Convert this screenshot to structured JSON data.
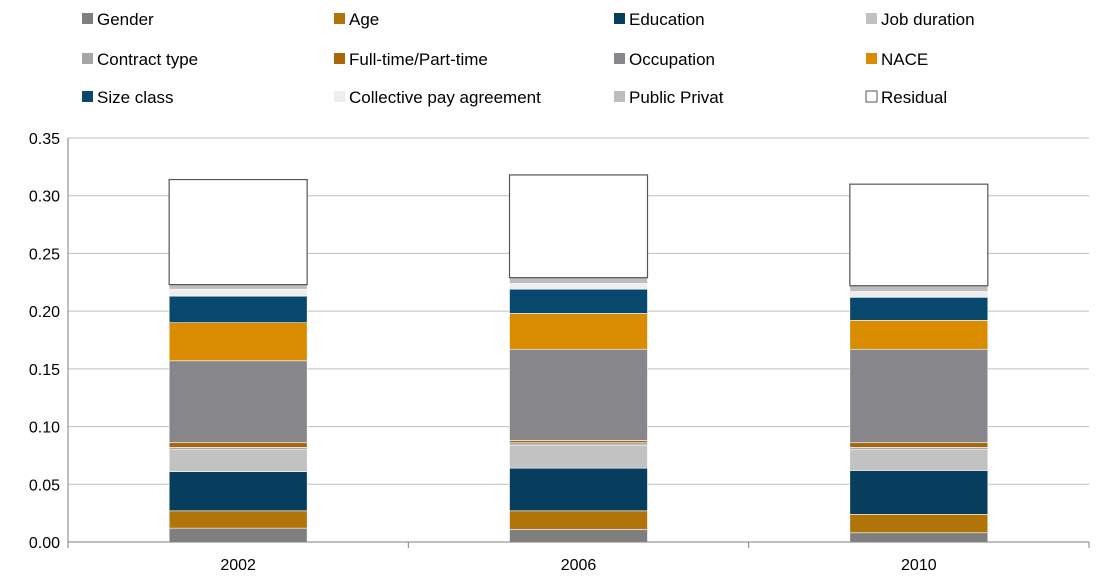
{
  "chart_data": {
    "type": "bar",
    "stacked": true,
    "categories": [
      "2002",
      "2006",
      "2010"
    ],
    "ylim": [
      0,
      0.35
    ],
    "yticks": [
      "0.00",
      "0.05",
      "0.10",
      "0.15",
      "0.20",
      "0.25",
      "0.30",
      "0.35"
    ],
    "grid": true,
    "legend_position": "top",
    "series": [
      {
        "name": "Gender",
        "color": "#7f7f7f",
        "values": [
          0.012,
          0.011,
          0.008
        ]
      },
      {
        "name": "Age",
        "color": "#b07408",
        "values": [
          0.015,
          0.016,
          0.016
        ]
      },
      {
        "name": "Education",
        "color": "#073e5e",
        "values": [
          0.034,
          0.037,
          0.038
        ]
      },
      {
        "name": "Job duration",
        "color": "#c2c2c2",
        "values": [
          0.019,
          0.02,
          0.018
        ]
      },
      {
        "name": "Contract type",
        "color": "#a6a6a6",
        "values": [
          0.002,
          0.002,
          0.002
        ]
      },
      {
        "name": "Full-time/Part-time",
        "color": "#a8650a",
        "values": [
          0.004,
          0.002,
          0.004
        ]
      },
      {
        "name": "Occupation",
        "color": "#87878b",
        "values": [
          0.071,
          0.079,
          0.081
        ]
      },
      {
        "name": "NACE",
        "color": "#d98c00",
        "values": [
          0.033,
          0.031,
          0.025
        ]
      },
      {
        "name": "Size class",
        "color": "#08486f",
        "values": [
          0.023,
          0.021,
          0.02
        ]
      },
      {
        "name": "Collective pay agreement",
        "color": "#eeeeee",
        "values": [
          0.006,
          0.005,
          0.005
        ]
      },
      {
        "name": "Public Privat",
        "color": "#bdbdbd",
        "values": [
          0.004,
          0.005,
          0.005
        ]
      },
      {
        "name": "Residual",
        "color": "#ffffff",
        "values": [
          0.091,
          0.089,
          0.088
        ]
      }
    ]
  }
}
